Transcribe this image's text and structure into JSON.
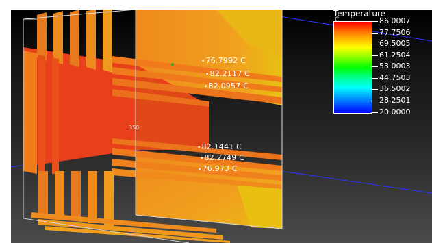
{
  "viewer": {
    "center_label": "350",
    "legend": {
      "title": "Temperature",
      "unit": "C",
      "values": [
        "86.0007",
        "77.7506",
        "69.5005",
        "61.2504",
        "53.0003",
        "44.7503",
        "36.5002",
        "28.2501",
        "20.0000"
      ]
    },
    "probes": [
      {
        "label": "76.7992 C"
      },
      {
        "label": "82.2117 C"
      },
      {
        "label": "82.0957 C"
      },
      {
        "label": "82.1441 C"
      },
      {
        "label": "82.2749 C"
      },
      {
        "label": "76.973 C"
      }
    ]
  },
  "colors": {
    "hot": "#e8401a",
    "warm": "#f07d1c",
    "orange": "#f2a21e",
    "yellow": "#e8c010"
  }
}
